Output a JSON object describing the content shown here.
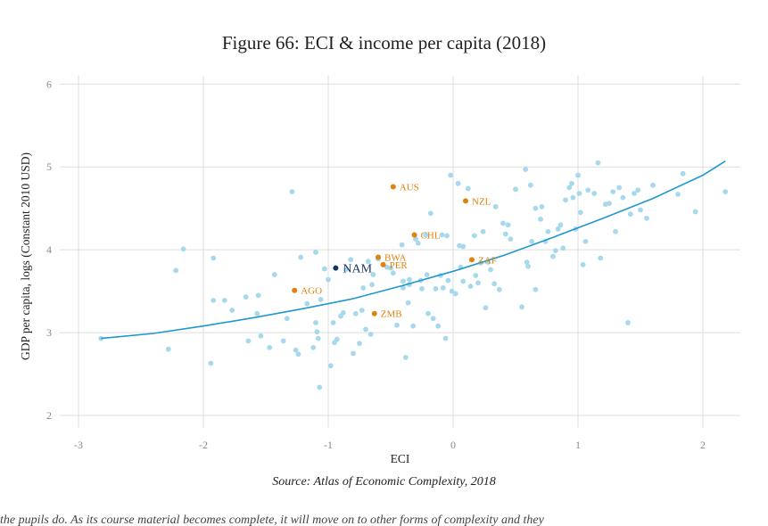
{
  "title": "Figure 66: ECI & income per capita (2018)",
  "source": "Source: Atlas of Economic Complexity, 2018",
  "caption": "the pupils do. As its course material becomes complete, it will move on to other forms of complexity and they",
  "colors": {
    "points": "#a8d8ec",
    "trend": "#1f97cf",
    "highlight": "#e0820e",
    "focus": "#13355f",
    "grid": "#dddddd"
  },
  "chart_data": {
    "type": "scatter",
    "xlabel": "ECI",
    "ylabel": "GDP per capita, logs (Constant 2010 USD)",
    "xlim": [
      -3.15,
      2.3
    ],
    "ylim": [
      1.85,
      6.1
    ],
    "xticks": [
      "-3",
      "-2",
      "-1",
      "0",
      "1",
      "2"
    ],
    "xtick_values": [
      -3,
      -2,
      -1,
      0,
      1,
      2
    ],
    "yticks": [
      "2",
      "3",
      "4",
      "5",
      "6"
    ],
    "ytick_values": [
      2,
      3,
      4,
      5,
      6
    ],
    "grid": true,
    "trend": {
      "x": [
        -2.82,
        -2.4,
        -2.0,
        -1.6,
        -1.2,
        -0.8,
        -0.4,
        0.0,
        0.4,
        0.8,
        1.2,
        1.6,
        2.0,
        2.18
      ],
      "y": [
        2.93,
        2.99,
        3.08,
        3.18,
        3.29,
        3.41,
        3.57,
        3.74,
        3.93,
        4.15,
        4.38,
        4.62,
        4.9,
        5.07
      ]
    },
    "highlighted": [
      {
        "label": "AUS",
        "x": -0.48,
        "y": 4.76
      },
      {
        "label": "NZL",
        "x": 0.1,
        "y": 4.59
      },
      {
        "label": "CHL",
        "x": -0.31,
        "y": 4.18
      },
      {
        "label": "ZAF",
        "x": 0.15,
        "y": 3.88
      },
      {
        "label": "BWA",
        "x": -0.6,
        "y": 3.91
      },
      {
        "label": "PER",
        "x": -0.56,
        "y": 3.82
      },
      {
        "label": "AGO",
        "x": -1.27,
        "y": 3.51
      },
      {
        "label": "ZMB",
        "x": -0.63,
        "y": 3.23
      }
    ],
    "focus": {
      "label": "NAM",
      "x": -0.94,
      "y": 3.78
    },
    "points": [
      [
        -2.82,
        2.93
      ],
      [
        -2.28,
        2.8
      ],
      [
        -2.22,
        3.75
      ],
      [
        -2.16,
        4.01
      ],
      [
        -1.94,
        2.63
      ],
      [
        -1.92,
        3.9
      ],
      [
        -1.92,
        3.39
      ],
      [
        -1.83,
        3.39
      ],
      [
        -1.77,
        3.27
      ],
      [
        -1.64,
        2.9
      ],
      [
        -1.66,
        3.43
      ],
      [
        -1.57,
        3.23
      ],
      [
        -1.56,
        3.45
      ],
      [
        -1.54,
        2.96
      ],
      [
        -1.47,
        2.82
      ],
      [
        -1.43,
        3.7
      ],
      [
        -1.36,
        2.9
      ],
      [
        -1.33,
        3.17
      ],
      [
        -1.29,
        4.7
      ],
      [
        -1.26,
        2.79
      ],
      [
        -1.24,
        2.74
      ],
      [
        -1.22,
        3.91
      ],
      [
        -1.17,
        3.35
      ],
      [
        -1.12,
        2.82
      ],
      [
        -1.1,
        3.97
      ],
      [
        -1.1,
        3.12
      ],
      [
        -1.09,
        3.01
      ],
      [
        -1.08,
        2.93
      ],
      [
        -1.06,
        3.4
      ],
      [
        -1.07,
        2.34
      ],
      [
        -1.0,
        3.64
      ],
      [
        -1.03,
        3.77
      ],
      [
        -0.98,
        2.6
      ],
      [
        -0.95,
        2.88
      ],
      [
        -0.93,
        2.92
      ],
      [
        -0.96,
        3.12
      ],
      [
        -0.9,
        3.2
      ],
      [
        -0.88,
        3.24
      ],
      [
        -0.86,
        3.76
      ],
      [
        -0.82,
        3.88
      ],
      [
        -0.8,
        2.75
      ],
      [
        -0.78,
        3.23
      ],
      [
        -0.75,
        2.87
      ],
      [
        -0.73,
        3.27
      ],
      [
        -0.72,
        3.54
      ],
      [
        -0.68,
        3.86
      ],
      [
        -0.65,
        3.58
      ],
      [
        -0.64,
        3.7
      ],
      [
        -0.7,
        3.04
      ],
      [
        -0.66,
        2.98
      ],
      [
        -0.6,
        3.89
      ],
      [
        -0.53,
        3.79
      ],
      [
        -0.5,
        3.78
      ],
      [
        -0.48,
        3.72
      ],
      [
        -0.45,
        3.09
      ],
      [
        -0.41,
        4.06
      ],
      [
        -0.4,
        3.62
      ],
      [
        -0.4,
        3.54
      ],
      [
        -0.38,
        2.7
      ],
      [
        -0.36,
        3.36
      ],
      [
        -0.35,
        3.64
      ],
      [
        -0.35,
        3.58
      ],
      [
        -0.32,
        3.08
      ],
      [
        -0.3,
        4.13
      ],
      [
        -0.28,
        4.08
      ],
      [
        -0.26,
        3.63
      ],
      [
        -0.25,
        3.53
      ],
      [
        -0.22,
        4.18
      ],
      [
        -0.21,
        3.7
      ],
      [
        -0.2,
        3.23
      ],
      [
        -0.18,
        4.44
      ],
      [
        -0.16,
        3.17
      ],
      [
        -0.14,
        3.53
      ],
      [
        -0.12,
        3.08
      ],
      [
        -0.1,
        3.69
      ],
      [
        -0.09,
        4.18
      ],
      [
        -0.08,
        3.54
      ],
      [
        -0.06,
        2.93
      ],
      [
        -0.05,
        4.17
      ],
      [
        -0.04,
        3.63
      ],
      [
        -0.02,
        4.9
      ],
      [
        -0.01,
        3.5
      ],
      [
        0.02,
        3.47
      ],
      [
        0.04,
        4.8
      ],
      [
        0.05,
        4.05
      ],
      [
        0.06,
        3.79
      ],
      [
        0.08,
        4.04
      ],
      [
        0.08,
        3.62
      ],
      [
        0.12,
        4.74
      ],
      [
        0.14,
        3.56
      ],
      [
        0.17,
        4.17
      ],
      [
        0.18,
        3.69
      ],
      [
        0.2,
        3.6
      ],
      [
        0.22,
        3.84
      ],
      [
        0.24,
        4.22
      ],
      [
        0.26,
        3.3
      ],
      [
        0.28,
        3.85
      ],
      [
        0.3,
        3.76
      ],
      [
        0.33,
        3.59
      ],
      [
        0.34,
        4.52
      ],
      [
        0.37,
        3.52
      ],
      [
        0.4,
        4.32
      ],
      [
        0.42,
        4.19
      ],
      [
        0.44,
        4.3
      ],
      [
        0.46,
        4.13
      ],
      [
        0.5,
        4.73
      ],
      [
        0.55,
        3.31
      ],
      [
        0.58,
        4.97
      ],
      [
        0.59,
        3.85
      ],
      [
        0.6,
        3.8
      ],
      [
        0.62,
        4.78
      ],
      [
        0.63,
        4.1
      ],
      [
        0.66,
        3.52
      ],
      [
        0.66,
        4.5
      ],
      [
        0.7,
        4.37
      ],
      [
        0.71,
        4.52
      ],
      [
        0.74,
        4.1
      ],
      [
        0.76,
        4.22
      ],
      [
        0.8,
        3.92
      ],
      [
        0.82,
        3.99
      ],
      [
        0.84,
        4.25
      ],
      [
        0.86,
        4.3
      ],
      [
        0.88,
        4.02
      ],
      [
        0.9,
        4.6
      ],
      [
        0.93,
        4.75
      ],
      [
        0.95,
        4.8
      ],
      [
        0.96,
        4.63
      ],
      [
        0.98,
        4.25
      ],
      [
        1.0,
        4.9
      ],
      [
        1.01,
        4.68
      ],
      [
        1.02,
        4.45
      ],
      [
        1.04,
        3.82
      ],
      [
        1.06,
        4.1
      ],
      [
        1.08,
        4.72
      ],
      [
        1.13,
        4.68
      ],
      [
        1.16,
        5.05
      ],
      [
        1.18,
        3.9
      ],
      [
        1.22,
        4.55
      ],
      [
        1.25,
        4.56
      ],
      [
        1.28,
        4.7
      ],
      [
        1.3,
        4.22
      ],
      [
        1.33,
        4.75
      ],
      [
        1.36,
        4.63
      ],
      [
        1.4,
        3.12
      ],
      [
        1.42,
        4.43
      ],
      [
        1.45,
        4.68
      ],
      [
        1.48,
        4.72
      ],
      [
        1.5,
        4.48
      ],
      [
        1.55,
        4.38
      ],
      [
        1.6,
        4.78
      ],
      [
        1.8,
        4.67
      ],
      [
        1.84,
        4.92
      ],
      [
        1.94,
        4.46
      ],
      [
        2.18,
        4.7
      ]
    ]
  }
}
